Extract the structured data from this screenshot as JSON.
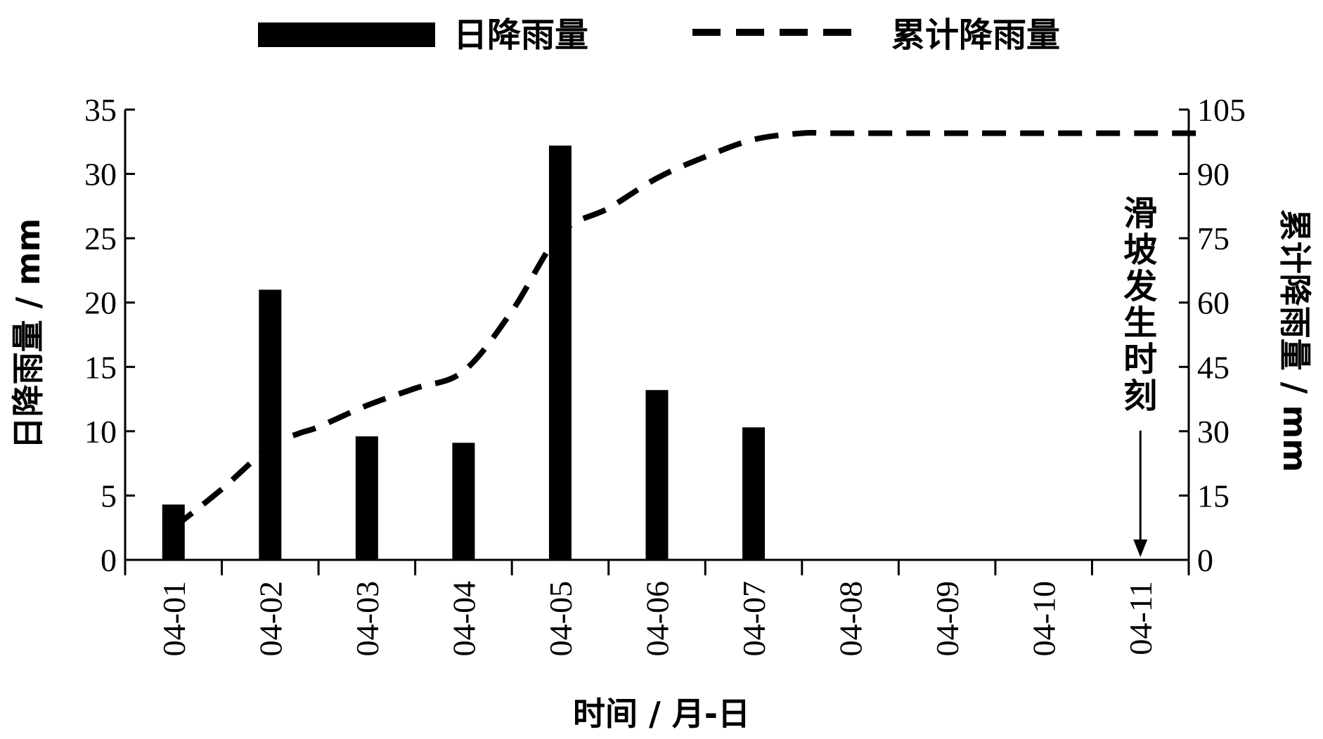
{
  "chart_data": {
    "type": "bar+line",
    "title": "",
    "categories": [
      "04-01",
      "04-02",
      "04-03",
      "04-04",
      "04-05",
      "04-06",
      "04-07",
      "04-08",
      "04-09",
      "04-10",
      "04-11"
    ],
    "series": [
      {
        "name": "日降雨量",
        "type": "bar",
        "axis": "left",
        "values": [
          4.3,
          21.0,
          9.6,
          9.1,
          32.2,
          13.2,
          10.3,
          0,
          0,
          0,
          0
        ],
        "color": "#000000"
      },
      {
        "name": "累计降雨量",
        "type": "line",
        "style": "dashed",
        "axis": "right",
        "curve_x": [
          0.0,
          0.5,
          1.0,
          1.3,
          1.5,
          2.0,
          2.5,
          3.0,
          3.5,
          4.0,
          4.5,
          5.0,
          5.5,
          6.0,
          6.5,
          6.8,
          7.5,
          8.0,
          9.0,
          10.0,
          10.65
        ],
        "curve_y": [
          7.5,
          16.5,
          26.5,
          29.5,
          31,
          36,
          40,
          44,
          58,
          76,
          82,
          89,
          94,
          98,
          99.5,
          99.5,
          99.5,
          99.5,
          99.5,
          99.5,
          99.5
        ],
        "color": "#000000"
      }
    ],
    "xlabel": "时间 / 月-日",
    "ylabel": "日降雨量 / mm",
    "y2label": "累计降雨量 / mm",
    "ylim": [
      0,
      35
    ],
    "yticks": [
      "0",
      "5",
      "10",
      "15",
      "20",
      "25",
      "30",
      "35"
    ],
    "y2lim": [
      0,
      105
    ],
    "y2ticks": [
      "0",
      "15",
      "30",
      "45",
      "60",
      "75",
      "90",
      "105"
    ],
    "legend_position": "top",
    "annotation": {
      "text": [
        "滑",
        "坡",
        "发",
        "生",
        "时",
        "刻"
      ],
      "category": "04-11"
    },
    "grid": false
  }
}
